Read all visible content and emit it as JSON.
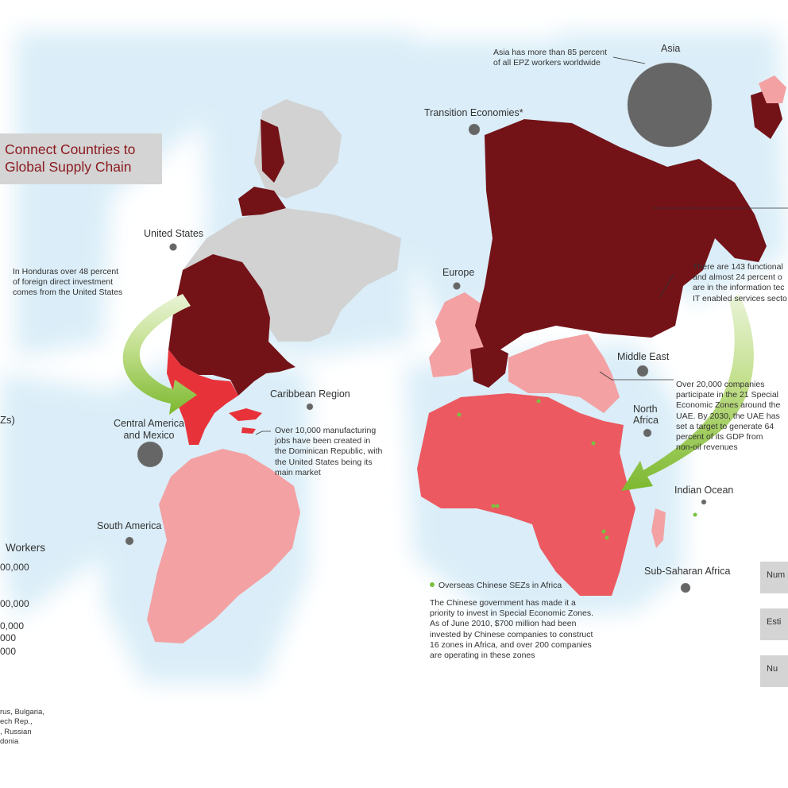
{
  "title": "Connect Countries to\nGlobal Supply Chain",
  "regions": {
    "asia": "Asia",
    "transition": "Transition Economies*",
    "united_states": "United States",
    "europe": "Europe",
    "middle_east": "Middle East",
    "caribbean": "Caribbean Region",
    "north_africa": "North\nAfrica",
    "central_america": "Central America\nand Mexico",
    "indian_ocean": "Indian Ocean",
    "south_america": "South America",
    "sub_saharan": "Sub-Saharan Africa"
  },
  "notes": {
    "asia": "Asia has more than 85 percent\nof all EPZ workers worldwide",
    "honduras": "In Honduras over 48 percent\nof foreign direct investment\ncomes from the United States",
    "india": "There are 143 functional\nand almost 24 percent o\nare in the information tec\nIT enabled services secto",
    "uae": "Over 20,000 companies\nparticipate in the 21 Special\nEconomic Zones around the\nUAE. By 2030, the UAE has\nset a target to generate 64\npercent of its GDP from\nnon-oil revenues",
    "dominican": "Over 10,000 manufacturing\njobs have been created in\nthe Dominican Republic, with\nthe United States being its\nmain market",
    "china_africa": "The Chinese government has made it a\npriority to invest in Special Economic Zones.\nAs of June 2010, $700 million had been\ninvested by Chinese companies to construct\n16 zones in Africa, and over 200 companies\nare operating in these zones"
  },
  "chinese_sez_legend": "Overseas Chinese SEZs in Africa",
  "left_legend": {
    "zs": "Zs)",
    "workers": "Workers",
    "v1": "00,000",
    "v2": "00,000",
    "v3": "0,000",
    "v4": "000",
    "v5": "000",
    "footnote": "rus, Bulgaria,\nech Rep.,\n, Russian\ndonia"
  },
  "right_legend": {
    "b1": "Num",
    "b2": "Esti",
    "b3": "Nu"
  },
  "colors": {
    "dark_red": "#731318",
    "red": "#e8323a",
    "mid_red": "#ec5960",
    "pink": "#f3a1a3",
    "light_pink": "#f8c6c7",
    "gray_land": "#d2d2d2",
    "ocean_glow": "#dbeef8",
    "bubble": "#666666",
    "arrow": "#8cc63f",
    "sez_dot": "#7ac143"
  },
  "icons": {
    "arrow": "curved-green-arrow",
    "bubble": "gray-circle-marker",
    "sez": "green-dot-marker"
  }
}
